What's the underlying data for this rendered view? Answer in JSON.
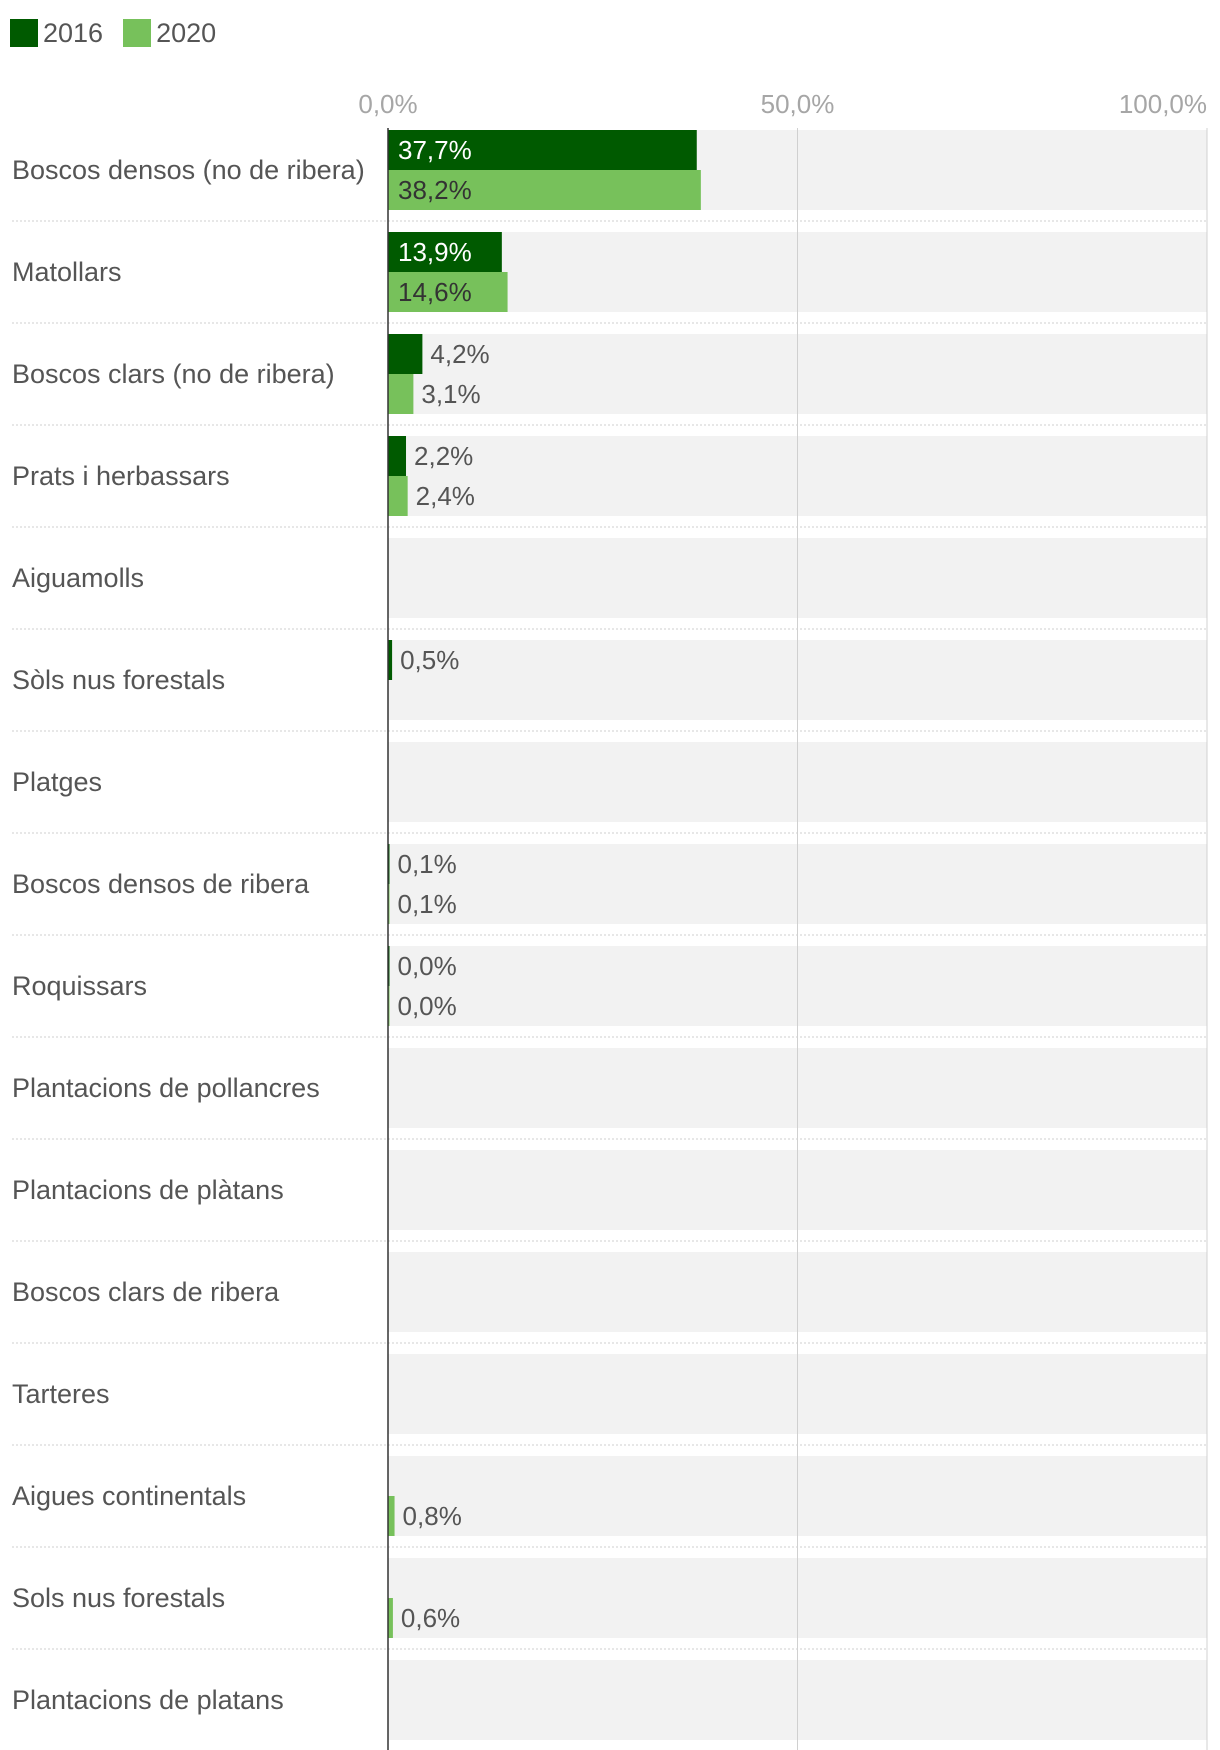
{
  "chart_data": {
    "type": "bar",
    "orientation": "horizontal",
    "xlim": [
      0,
      100
    ],
    "ticks": [
      {
        "value": 0,
        "label": "0,0%"
      },
      {
        "value": 50,
        "label": "50,0%"
      },
      {
        "value": 100,
        "label": "100,0%"
      }
    ],
    "legend_position": "top-left",
    "colors": {
      "s2016": "#005a00",
      "s2020": "#77c15b",
      "row_bg": "#f2f2f2",
      "grid": "#d0d0d0",
      "axis": "#333333",
      "label": "#555555",
      "tick": "#a6a6a6"
    },
    "categories": [
      "Boscos densos (no de ribera)",
      "Matollars",
      "Boscos clars (no de ribera)",
      "Prats i herbassars",
      "Aiguamolls",
      "Sòls nus forestals",
      "Platges",
      "Boscos densos de ribera",
      "Roquissars",
      "Plantacions de pollancres",
      "Plantacions de plàtans",
      "Boscos clars de ribera",
      "Tarteres",
      "Aigues continentals",
      "Sols nus forestals",
      "Plantacions de platans"
    ],
    "series": [
      {
        "name": "2016",
        "values": [
          37.7,
          13.9,
          4.2,
          2.2,
          null,
          0.5,
          null,
          0.1,
          0.0,
          null,
          null,
          null,
          null,
          null,
          null,
          null
        ],
        "labels": [
          "37,7%",
          "13,9%",
          "4,2%",
          "2,2%",
          "",
          "0,5%",
          "",
          "0,1%",
          "0,0%",
          "",
          "",
          "",
          "",
          "",
          "",
          ""
        ]
      },
      {
        "name": "2020",
        "values": [
          38.2,
          14.6,
          3.1,
          2.4,
          null,
          null,
          null,
          0.1,
          0.0,
          null,
          null,
          null,
          null,
          0.8,
          0.6,
          null
        ],
        "labels": [
          "38,2%",
          "14,6%",
          "3,1%",
          "2,4%",
          "",
          "",
          "",
          "0,1%",
          "0,0%",
          "",
          "",
          "",
          "",
          "0,8%",
          "0,6%",
          ""
        ]
      }
    ]
  }
}
